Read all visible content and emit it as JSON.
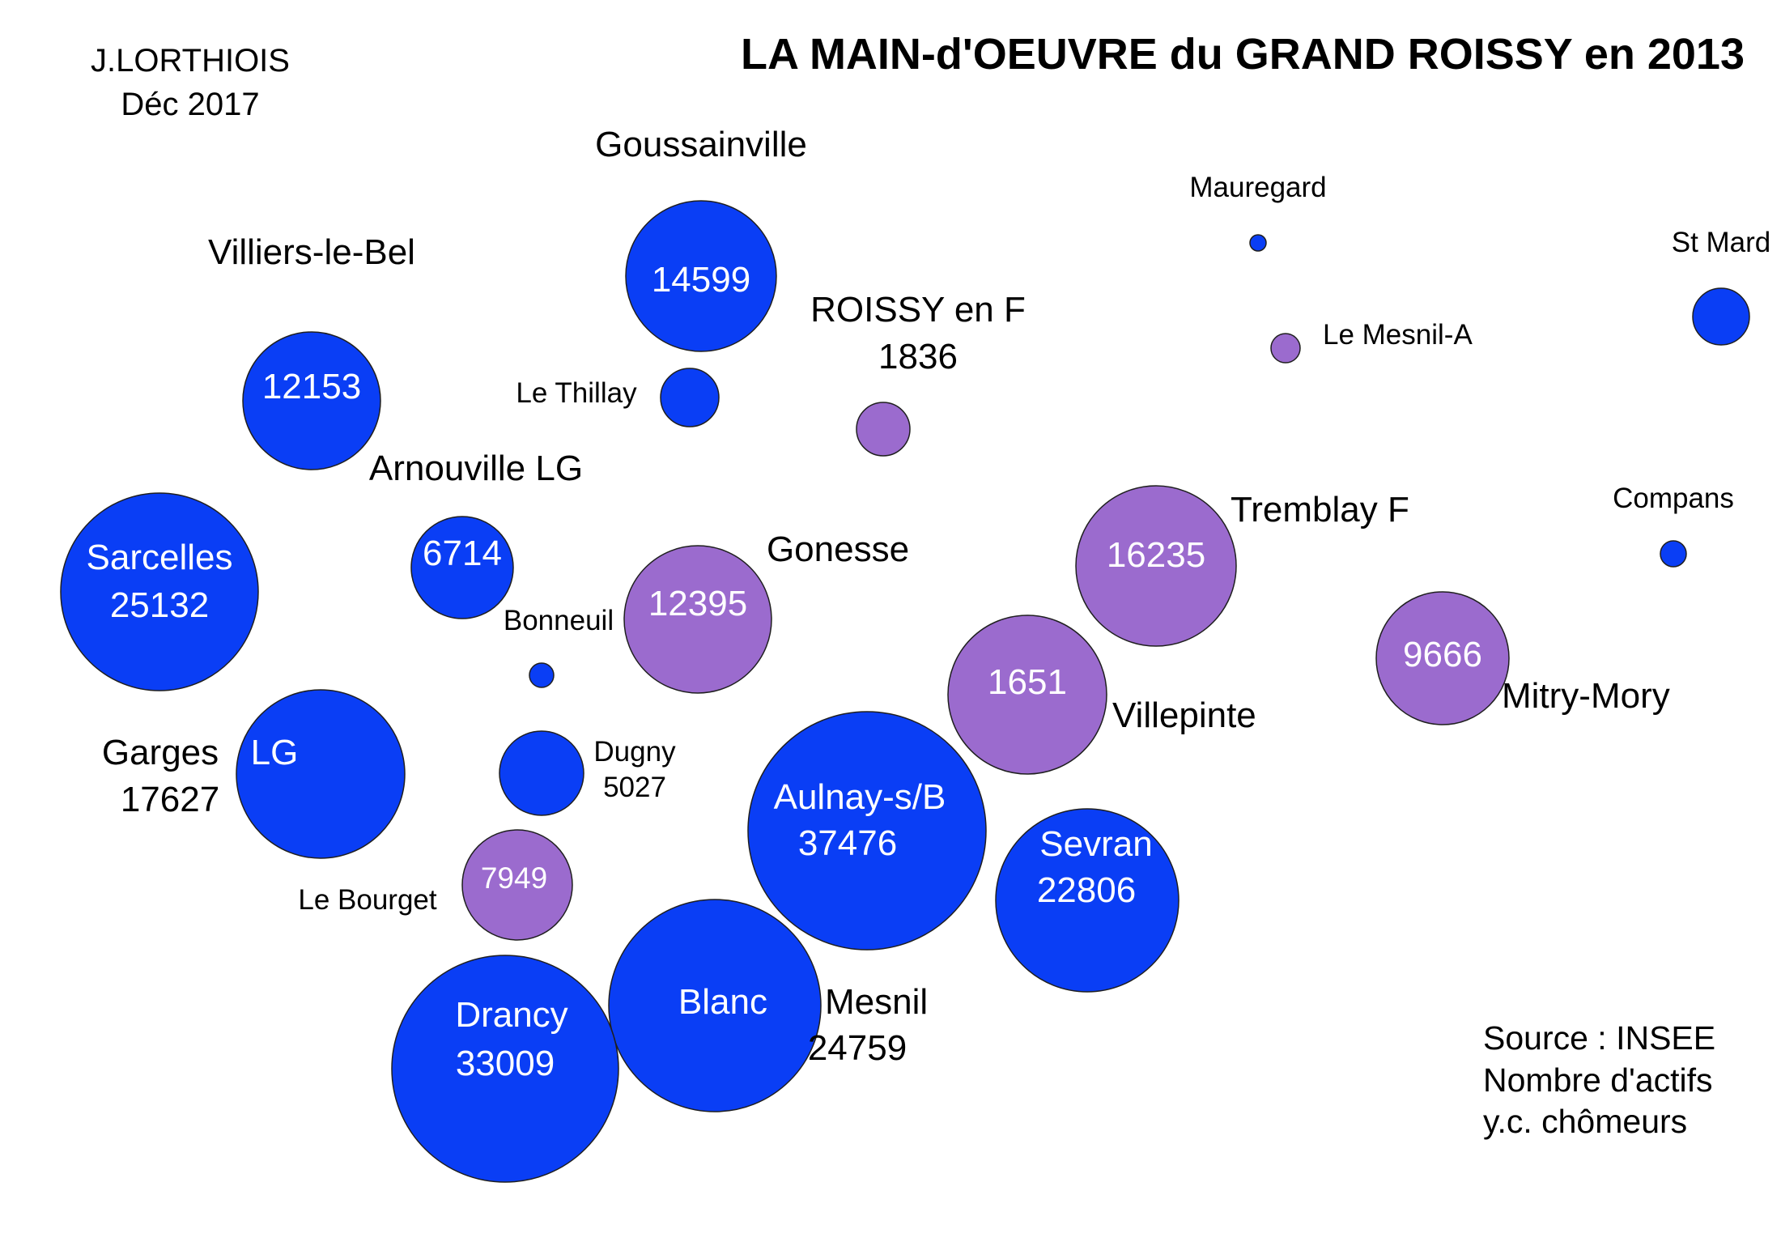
{
  "header": {
    "author": "J.LORTHIOIS",
    "date": "Déc  2017",
    "title": "LA MAIN-d'OEUVRE du GRAND ROISSY en 2013"
  },
  "source": {
    "line1": "Source : INSEE",
    "line2": "Nombre d'actifs",
    "line3": "y.c. chômeurs"
  },
  "colors": {
    "blue": "#0a3ef5",
    "purple": "#9b6bce",
    "text_inside": "#ffffff",
    "text_outside": "#000000"
  },
  "chart_data": {
    "type": "bubble",
    "title": "LA MAIN-d'OEUVRE du GRAND ROISSY en 2013",
    "size_measure": "Nombre d'actifs y.c. chômeurs",
    "color_groups": [
      "blue",
      "purple"
    ],
    "points": [
      {
        "name": "Goussainville",
        "value": 14599,
        "color": "blue"
      },
      {
        "name": "Villiers-le-Bel",
        "value": 12153,
        "color": "blue"
      },
      {
        "name": "Le Thillay",
        "value": null,
        "color": "blue"
      },
      {
        "name": "ROISSY en F",
        "value": 1836,
        "color": "purple"
      },
      {
        "name": "Mauregard",
        "value": null,
        "color": "blue"
      },
      {
        "name": "Le Mesnil-A",
        "value": null,
        "color": "purple"
      },
      {
        "name": "St Mard",
        "value": null,
        "color": "blue"
      },
      {
        "name": "Arnouville LG",
        "value": 6714,
        "color": "blue"
      },
      {
        "name": "Sarcelles",
        "value": 25132,
        "color": "blue"
      },
      {
        "name": "Gonesse",
        "value": 12395,
        "color": "purple"
      },
      {
        "name": "Bonneuil",
        "value": null,
        "color": "blue"
      },
      {
        "name": "Tremblay F",
        "value": 16235,
        "color": "purple"
      },
      {
        "name": "Compans",
        "value": null,
        "color": "blue"
      },
      {
        "name": "Villepinte",
        "value": 1651,
        "color": "purple"
      },
      {
        "name": "Mitry-Mory",
        "value": 9666,
        "color": "purple"
      },
      {
        "name": "Garges LG",
        "value": 17627,
        "color": "blue"
      },
      {
        "name": "Dugny",
        "value": 5027,
        "color": "blue"
      },
      {
        "name": "Aulnay-s/B",
        "value": 37476,
        "color": "blue"
      },
      {
        "name": "Sevran",
        "value": 22806,
        "color": "blue"
      },
      {
        "name": "Le Bourget",
        "value": 7949,
        "color": "purple"
      },
      {
        "name": "Blanc Mesnil",
        "value": 24759,
        "color": "blue"
      },
      {
        "name": "Drancy",
        "value": 33009,
        "color": "blue"
      }
    ]
  }
}
